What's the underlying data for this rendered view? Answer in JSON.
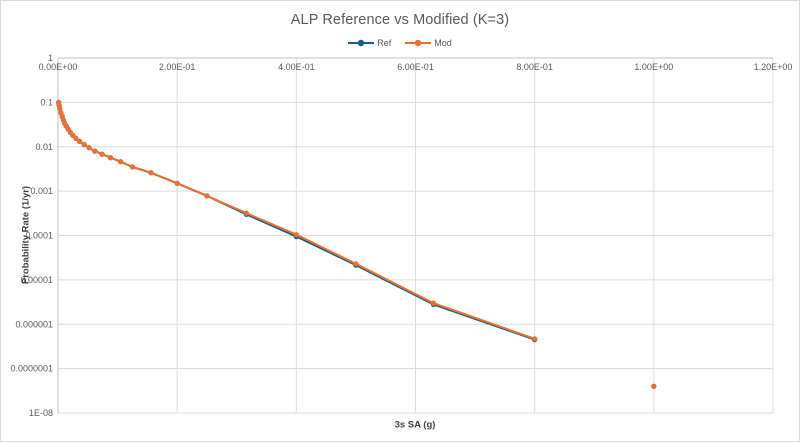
{
  "colors": {
    "ref_series": "#156082",
    "mod_series": "#E97132",
    "gridline": "#dcdcdc",
    "axis_line": "#c0c0c0",
    "title_text": "#595959",
    "tick_text": "#595959",
    "axis_title_text": "#404040"
  },
  "chart_data": {
    "type": "line",
    "title": "ALP Reference vs Modified (K=3)",
    "xlabel": "3s SA (g)",
    "ylabel": "Probability Rate (1/yr)",
    "x_scale": "linear",
    "y_scale": "log",
    "xlim": [
      0,
      1.2
    ],
    "ylim": [
      1e-08,
      1
    ],
    "grid": true,
    "legend_position": "top-center",
    "x_ticks": [
      {
        "value": 0.0,
        "label": "0.00E+00"
      },
      {
        "value": 0.2,
        "label": "2.00E-01"
      },
      {
        "value": 0.4,
        "label": "4.00E-01"
      },
      {
        "value": 0.6,
        "label": "6.00E-01"
      },
      {
        "value": 0.8,
        "label": "8.00E-01"
      },
      {
        "value": 1.0,
        "label": "1.00E+00"
      },
      {
        "value": 1.2,
        "label": "1.20E+00"
      }
    ],
    "y_ticks": [
      {
        "value": 1,
        "label": "1"
      },
      {
        "value": 0.1,
        "label": "0.1"
      },
      {
        "value": 0.01,
        "label": "0.01"
      },
      {
        "value": 0.001,
        "label": "0.001"
      },
      {
        "value": 0.0001,
        "label": "0.0001"
      },
      {
        "value": 1e-05,
        "label": "0.00001"
      },
      {
        "value": 1e-06,
        "label": "0.000001"
      },
      {
        "value": 1e-07,
        "label": "0.0000001"
      },
      {
        "value": 1e-08,
        "label": "1E-08"
      }
    ],
    "x": [
      0.001,
      0.002,
      0.003,
      0.005,
      0.007,
      0.009,
      0.011,
      0.014,
      0.017,
      0.021,
      0.025,
      0.03,
      0.036,
      0.044,
      0.052,
      0.062,
      0.074,
      0.088,
      0.105,
      0.125,
      0.156,
      0.2,
      0.25,
      0.316,
      0.4,
      0.5,
      0.63,
      0.8,
      0.9,
      1.0
    ],
    "series": [
      {
        "name": "Ref",
        "color": "#156082",
        "y": [
          0.1,
          0.085,
          0.072,
          0.058,
          0.048,
          0.04,
          0.034,
          0.029,
          0.025,
          0.021,
          0.018,
          0.0155,
          0.0132,
          0.0112,
          0.0095,
          0.008,
          0.0068,
          0.0057,
          0.0046,
          0.0035,
          0.0026,
          0.0015,
          0.00078,
          0.0003,
          9.5e-05,
          2.15e-05,
          2.8e-06,
          4.5e-07,
          null,
          4e-08
        ]
      },
      {
        "name": "Mod",
        "color": "#E97132",
        "y": [
          0.1,
          0.085,
          0.072,
          0.058,
          0.048,
          0.04,
          0.034,
          0.029,
          0.025,
          0.021,
          0.018,
          0.0155,
          0.0132,
          0.0112,
          0.0095,
          0.008,
          0.0068,
          0.0057,
          0.0046,
          0.0035,
          0.0026,
          0.0015,
          0.00078,
          0.00032,
          0.000105,
          2.3e-05,
          3e-06,
          4.7e-07,
          null,
          4e-08
        ]
      }
    ]
  }
}
